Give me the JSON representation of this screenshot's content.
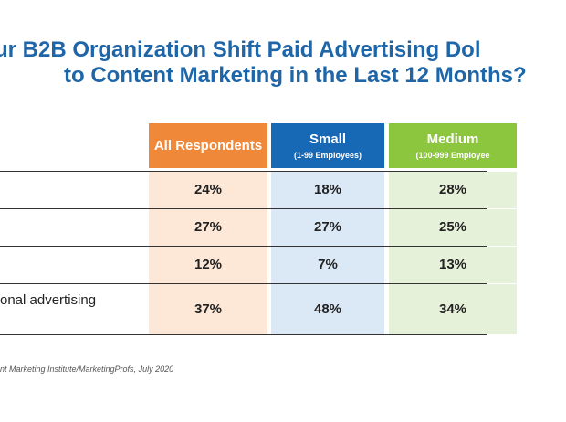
{
  "title": {
    "line1": "ur B2B Organization Shift Paid Advertising Dol",
    "line2": "to Content Marketing in the Last 12 Months?"
  },
  "colors": {
    "title": "#1f66a8",
    "all_header": "#f0883a",
    "small_header": "#1769b5",
    "medium_header": "#8cc63f",
    "all_fill": "#fde8d7",
    "small_fill": "#dbe8f5",
    "medium_fill": "#e6f1d9"
  },
  "chart_data": {
    "type": "table",
    "columns": [
      {
        "name": "All Respondents",
        "sub": ""
      },
      {
        "name": "Small",
        "sub": "(1-99 Employees)"
      },
      {
        "name": "Medium",
        "sub": "(100-999 Employee"
      }
    ],
    "rows": [
      {
        "label": "",
        "values": [
          "24%",
          "18%",
          "28%"
        ]
      },
      {
        "label": "",
        "values": [
          "27%",
          "27%",
          "25%"
        ]
      },
      {
        "label": "",
        "values": [
          "12%",
          "7%",
          "13%"
        ]
      },
      {
        "label": "onal advertising",
        "values": [
          "37%",
          "48%",
          "34%"
        ]
      }
    ]
  },
  "source": "nt Marketing Institute/MarketingProfs, July 2020"
}
